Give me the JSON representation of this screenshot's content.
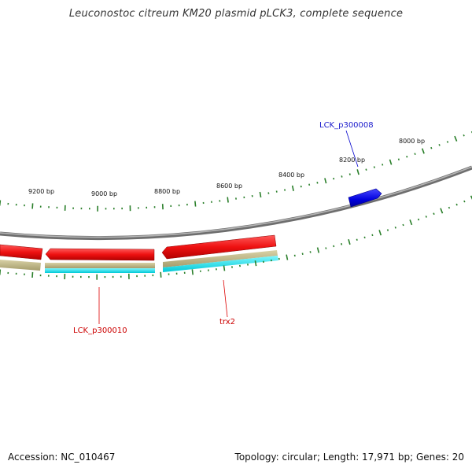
{
  "title": "Leuconostoc citreum KM20 plasmid pLCK3, complete sequence",
  "footer": {
    "accession": "Accession: NC_010467",
    "summary": "Topology: circular; Length: 17,971 bp; Genes: 20"
  },
  "colors": {
    "forward_gene": "#0000dd",
    "reverse_gene": "#ee1111",
    "cds_track": "#b9b182",
    "cyan_track": "#00e8f0",
    "backbone": "#8c8c8c",
    "ticks": "#2a7f2a"
  },
  "scale_labels": [
    "9200 bp",
    "9000 bp",
    "8800 bp",
    "8600 bp",
    "8400 bp",
    "8200 bp",
    "8000 bp"
  ],
  "gene_labels": [
    {
      "name": "LCK_p300008",
      "strand": "forward"
    },
    {
      "name": "LCK_p300010",
      "strand": "reverse"
    },
    {
      "name": "trx2",
      "strand": "reverse"
    }
  ]
}
